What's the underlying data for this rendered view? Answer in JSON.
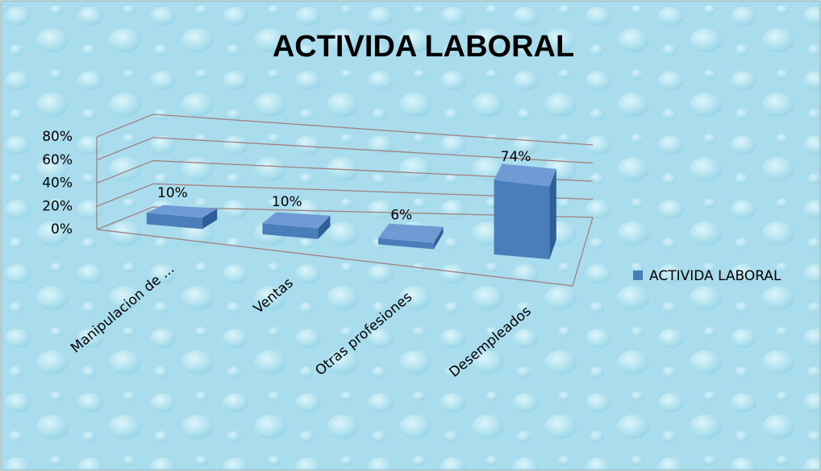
{
  "chart_data": {
    "type": "bar3d",
    "title": "ACTIVIDA LABORAL",
    "categories": [
      "Manipulacion de ...",
      "Ventas",
      "Otras profesiones",
      "Desempleados"
    ],
    "series": [
      {
        "name": "ACTIVIDA LABORAL",
        "color": "#4a7ebb",
        "values": [
          10,
          10,
          6,
          74
        ],
        "value_labels": [
          "10%",
          "10%",
          "6%",
          "74%"
        ]
      }
    ],
    "ylim": [
      0,
      80
    ],
    "yticks": [
      {
        "value": 0,
        "label": "0%"
      },
      {
        "value": 20,
        "label": "20%"
      },
      {
        "value": 40,
        "label": "40%"
      },
      {
        "value": 60,
        "label": "60%"
      },
      {
        "value": 80,
        "label": "80%"
      }
    ],
    "grid": true,
    "legend": "right"
  }
}
